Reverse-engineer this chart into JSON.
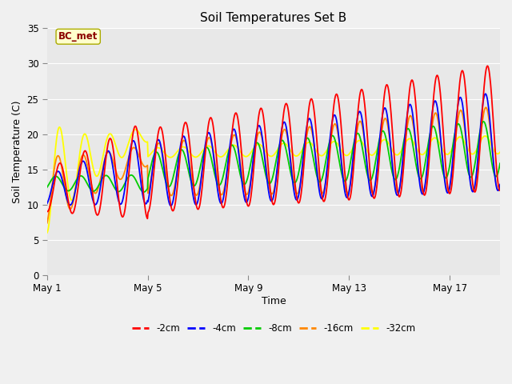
{
  "title": "Soil Temperatures Set B",
  "xlabel": "Time",
  "ylabel": "Soil Temperature (C)",
  "ylim": [
    0,
    35
  ],
  "yticks": [
    0,
    5,
    10,
    15,
    20,
    25,
    30,
    35
  ],
  "xtick_labels": [
    "May 1",
    "May 5",
    "May 9",
    "May 13",
    "May 17"
  ],
  "xtick_positions": [
    0,
    4,
    8,
    12,
    16
  ],
  "annotation_label": "BC_met",
  "fig_bg_color": "#f0f0f0",
  "plot_bg_color": "#e8e8e8",
  "grid_color": "#ffffff",
  "colors": {
    "-2cm": "#ff0000",
    "-4cm": "#0000ff",
    "-8cm": "#00cc00",
    "-16cm": "#ff8800",
    "-32cm": "#ffff00"
  },
  "legend_labels": [
    "-2cm",
    "-4cm",
    "-8cm",
    "-16cm",
    "-32cm"
  ],
  "num_days": 19,
  "samples_per_day": 48
}
